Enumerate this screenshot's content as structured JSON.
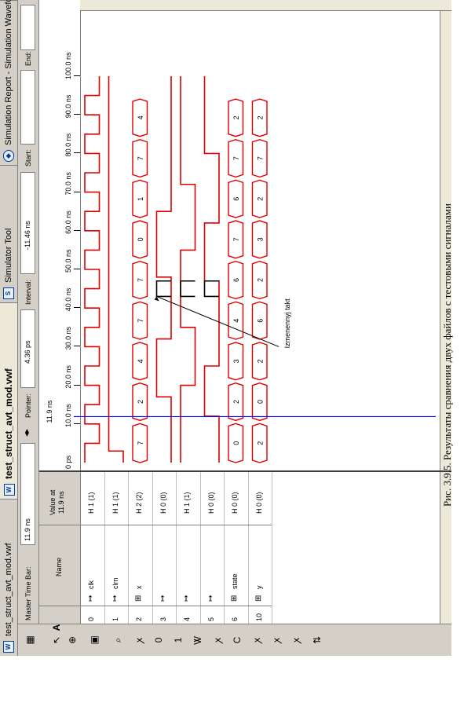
{
  "tabs": [
    {
      "label": "test_struct_avt_mod.vwf",
      "active": false
    },
    {
      "label": "test_struct_avt_mod.vwf",
      "active": true
    },
    {
      "label": "Simulator Tool",
      "active": false
    },
    {
      "label": "Simulation Report - Simulation Waveforms",
      "active": false
    }
  ],
  "timebar": {
    "master_label": "Master Time Bar:",
    "master_value": "11.9 ns",
    "pointer_label": "Pointer:",
    "pointer_value": "4.36 ps",
    "interval_label": "Interval:",
    "interval_value": "-11.46 ns",
    "start_label": "Start:",
    "end_label": "End:"
  },
  "headers": {
    "name": "Name",
    "value": "Value at\n11.9 ns"
  },
  "ruler": {
    "ticks": [
      "0 ps",
      "10.0 ns",
      "20.0 ns",
      "30.0 ns",
      "40.0 ns",
      "50.0 ns",
      "60.0 ns",
      "70.0 ns",
      "80.0 ns",
      "90.0 ns",
      "100.0 ns"
    ],
    "cursor_label": "11.9 ns"
  },
  "signals": [
    {
      "index": "0",
      "name": "clk",
      "value": "H 1 (1)"
    },
    {
      "index": "1",
      "name": "clrn",
      "value": "H 1 (1)"
    },
    {
      "index": "2",
      "name": "x",
      "value": "H 2 (2)"
    },
    {
      "index": "3",
      "name": "",
      "value": "H 0 (0)"
    },
    {
      "index": "4",
      "name": "",
      "value": "H 1 (1)"
    },
    {
      "index": "5",
      "name": "",
      "value": "H 0 (0)"
    },
    {
      "index": "6",
      "name": "state",
      "value": "H 0 (0)"
    },
    {
      "index": "10",
      "name": "y",
      "value": "H 0 (0)"
    }
  ],
  "bus_values": {
    "x": [
      "7",
      "2",
      "4",
      "7",
      "7",
      "0",
      "1",
      "7",
      "4"
    ],
    "state": [
      "0",
      "2",
      "3",
      "4",
      "6",
      "7",
      "6",
      "7",
      "2"
    ],
    "y": [
      "2",
      "0",
      "2",
      "6",
      "2",
      "3",
      "2",
      "7",
      "2"
    ]
  },
  "annotation": "Izmenennyj takt",
  "caption": "Рис. 3.9.5. Результаты сравнения двух файлов с тестовыми сигналами",
  "colors": {
    "waveform": "#e00000",
    "cursor": "#0000ff"
  }
}
